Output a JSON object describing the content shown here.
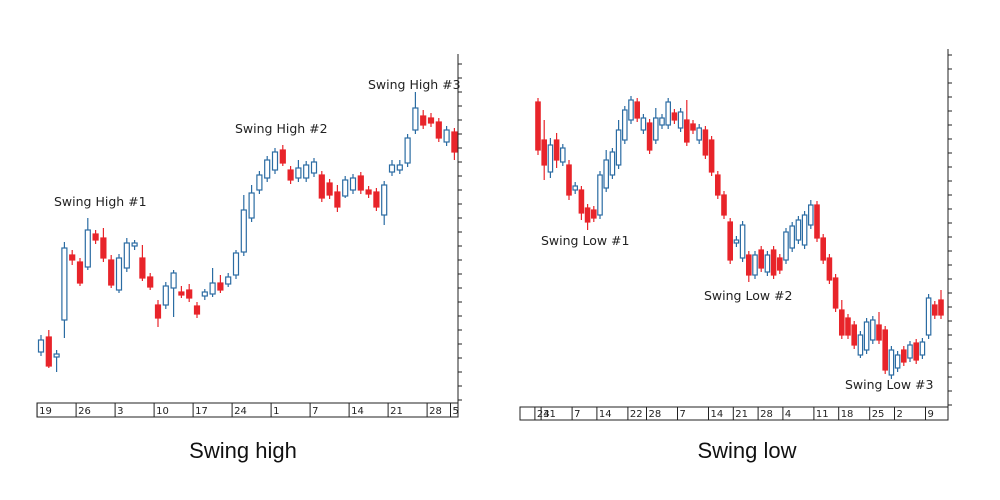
{
  "chart_data": [
    {
      "type": "candlestick",
      "caption": "Swing high",
      "up_color": "#2b6ca3",
      "down_color": "#e8242a",
      "categories": [
        "19",
        null,
        null,
        null,
        null,
        "26",
        null,
        null,
        null,
        null,
        "3",
        null,
        null,
        null,
        null,
        "10",
        null,
        null,
        null,
        null,
        "17",
        null,
        null,
        null,
        null,
        "24",
        null,
        null,
        null,
        null,
        "1",
        null,
        null,
        null,
        null,
        "7",
        null,
        null,
        null,
        null,
        "14",
        null,
        null,
        null,
        null,
        "21",
        null,
        null,
        null,
        null,
        "28",
        null,
        null,
        "5"
      ],
      "open": [
        48,
        63,
        43,
        80,
        145,
        138,
        133,
        166,
        162,
        140,
        110,
        132,
        154,
        142,
        123,
        95,
        95,
        112,
        108,
        110,
        94,
        104,
        106,
        117,
        116,
        125,
        148,
        182,
        210,
        222,
        230,
        250,
        230,
        222,
        222,
        227,
        225,
        217,
        208,
        204,
        210,
        224,
        210,
        208,
        185,
        228,
        230,
        237,
        270,
        284,
        282,
        278,
        258,
        268
      ],
      "high": [
        65,
        70,
        50,
        158,
        150,
        142,
        182,
        170,
        172,
        145,
        146,
        162,
        160,
        155,
        127,
        100,
        118,
        130,
        114,
        116,
        98,
        111,
        132,
        125,
        127,
        150,
        205,
        215,
        229,
        244,
        252,
        255,
        234,
        240,
        239,
        242,
        229,
        221,
        215,
        224,
        226,
        228,
        214,
        212,
        219,
        240,
        240,
        266,
        308,
        290,
        287,
        282,
        274,
        272
      ],
      "low": [
        44,
        32,
        28,
        62,
        135,
        114,
        130,
        156,
        138,
        112,
        107,
        128,
        150,
        119,
        110,
        73,
        91,
        83,
        102,
        98,
        82,
        100,
        103,
        107,
        113,
        121,
        144,
        178,
        206,
        218,
        226,
        234,
        216,
        218,
        218,
        223,
        198,
        201,
        188,
        202,
        206,
        206,
        202,
        189,
        175,
        224,
        226,
        233,
        266,
        271,
        273,
        258,
        254,
        240
      ],
      "close": [
        60,
        34,
        46,
        152,
        140,
        117,
        170,
        160,
        142,
        115,
        142,
        157,
        157,
        122,
        113,
        82,
        114,
        127,
        105,
        102,
        86,
        108,
        117,
        110,
        123,
        147,
        190,
        207,
        225,
        240,
        248,
        237,
        220,
        232,
        235,
        238,
        202,
        205,
        193,
        220,
        222,
        210,
        206,
        193,
        215,
        235,
        235,
        262,
        292,
        275,
        277,
        262,
        270,
        248
      ],
      "annotations": [
        "Swing High #1",
        "Swing High #2",
        "Swing High #3"
      ],
      "ylim": [
        0,
        340
      ],
      "yticks": [
        0,
        14,
        28,
        42,
        56,
        70,
        84,
        98,
        112,
        126,
        140,
        154,
        168,
        182,
        196,
        210,
        224,
        238,
        252,
        266,
        280,
        294,
        308,
        322,
        336
      ]
    },
    {
      "type": "candlestick",
      "caption": "Swing low",
      "up_color": "#2b6ca3",
      "down_color": "#e8242a",
      "categories": [
        "24",
        "31",
        null,
        null,
        null,
        null,
        "7",
        null,
        null,
        null,
        "14",
        null,
        null,
        null,
        null,
        "22",
        null,
        null,
        "28",
        null,
        null,
        null,
        null,
        "7",
        null,
        null,
        null,
        null,
        "14",
        null,
        null,
        null,
        "21",
        null,
        null,
        null,
        "28",
        null,
        null,
        null,
        "4",
        null,
        null,
        null,
        null,
        "11",
        null,
        null,
        null,
        "18",
        null,
        null,
        null,
        null,
        "25",
        null,
        null,
        null,
        "2",
        null,
        null,
        null,
        null,
        "9",
        null,
        null
      ],
      "open": [
        303,
        265,
        233,
        265,
        243,
        240,
        215,
        215,
        197,
        195,
        190,
        217,
        230,
        240,
        265,
        285,
        303,
        275,
        282,
        265,
        280,
        280,
        292,
        277,
        285,
        281,
        265,
        275,
        265,
        230,
        210,
        183,
        162,
        147,
        150,
        130,
        155,
        133,
        155,
        147,
        145,
        157,
        165,
        160,
        180,
        200,
        167,
        147,
        127,
        95,
        87,
        80,
        50,
        55,
        65,
        80,
        75,
        30,
        37,
        55,
        47,
        62,
        50,
        70,
        100,
        105
      ],
      "high": [
        307,
        285,
        267,
        272,
        261,
        245,
        223,
        219,
        201,
        199,
        234,
        255,
        257,
        285,
        299,
        309,
        307,
        291,
        286,
        297,
        291,
        307,
        296,
        297,
        305,
        285,
        281,
        279,
        269,
        234,
        214,
        187,
        169,
        184,
        154,
        154,
        159,
        154,
        159,
        151,
        177,
        183,
        189,
        194,
        205,
        204,
        171,
        151,
        131,
        105,
        91,
        84,
        74,
        87,
        89,
        93,
        79,
        59,
        54,
        59,
        64,
        66,
        67,
        111,
        104,
        115
      ],
      "low": [
        250,
        225,
        227,
        237,
        239,
        205,
        211,
        185,
        175,
        183,
        186,
        213,
        226,
        236,
        261,
        281,
        283,
        271,
        251,
        261,
        276,
        276,
        281,
        273,
        259,
        271,
        261,
        246,
        229,
        206,
        186,
        141,
        158,
        143,
        123,
        126,
        133,
        129,
        126,
        131,
        141,
        153,
        161,
        156,
        176,
        163,
        141,
        121,
        93,
        66,
        66,
        56,
        47,
        51,
        61,
        61,
        31,
        26,
        33,
        39,
        43,
        41,
        46,
        66,
        86,
        86
      ],
      "close": [
        255,
        240,
        260,
        245,
        257,
        210,
        219,
        192,
        183,
        187,
        230,
        245,
        253,
        275,
        295,
        305,
        287,
        287,
        255,
        287,
        287,
        303,
        285,
        293,
        263,
        275,
        277,
        250,
        233,
        210,
        190,
        145,
        165,
        180,
        130,
        150,
        137,
        150,
        130,
        135,
        173,
        179,
        185,
        190,
        200,
        167,
        145,
        125,
        97,
        70,
        70,
        60,
        70,
        83,
        85,
        65,
        35,
        55,
        50,
        43,
        60,
        45,
        63,
        107,
        90,
        90
      ],
      "annotations": [
        "Swing Low #1",
        "Swing Low #2",
        "Swing Low #3"
      ],
      "ylim": [
        0,
        350
      ],
      "yticks": [
        0,
        14,
        28,
        42,
        56,
        70,
        84,
        98,
        112,
        126,
        140,
        154,
        168,
        182,
        196,
        210,
        224,
        238,
        252,
        266,
        280,
        294,
        308,
        322,
        336,
        350
      ]
    }
  ]
}
